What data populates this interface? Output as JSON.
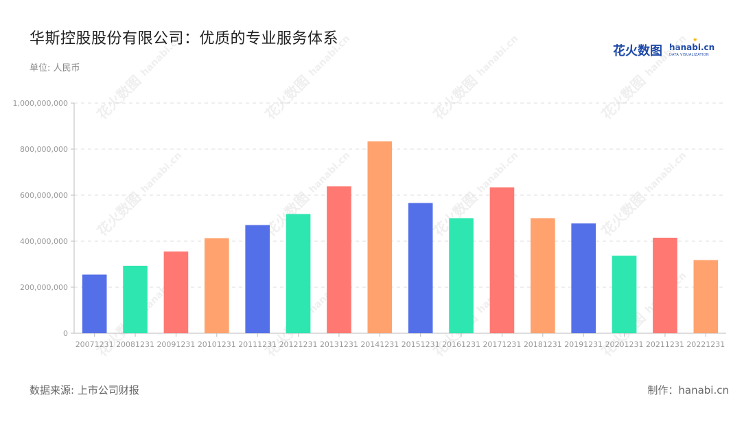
{
  "title": "华斯控股股份有限公司：优质的专业服务体系",
  "unit": "单位: 人民币",
  "source": "数据来源: 上市公司财报",
  "maker": "制作：hanabi.cn",
  "logo": {
    "cn": "花火数图",
    "en": "hanabi.cn",
    "sub": "DATA VISUALIZATION"
  },
  "watermark": {
    "cn": "花火数图",
    "en": "hanabi.cn"
  },
  "chart_data": {
    "type": "bar",
    "categories": [
      "20071231",
      "20081231",
      "20091231",
      "20101231",
      "20111231",
      "20121231",
      "20131231",
      "20141231",
      "20151231",
      "20161231",
      "20171231",
      "20181231",
      "20191231",
      "20201231",
      "20211231",
      "20221231"
    ],
    "values": [
      255000000,
      293000000,
      355000000,
      413000000,
      470000000,
      518000000,
      638000000,
      834000000,
      566000000,
      500000000,
      634000000,
      500000000,
      477000000,
      337000000,
      415000000,
      318000000
    ],
    "colors": [
      "#5470e8",
      "#2ee6b0",
      "#ff7872",
      "#ffa26e"
    ],
    "yticks": [
      "0",
      "200,000,000",
      "400,000,000",
      "600,000,000",
      "800,000,000",
      "1,000,000,000"
    ],
    "ylim": [
      0,
      1000000000
    ],
    "grid": true
  }
}
